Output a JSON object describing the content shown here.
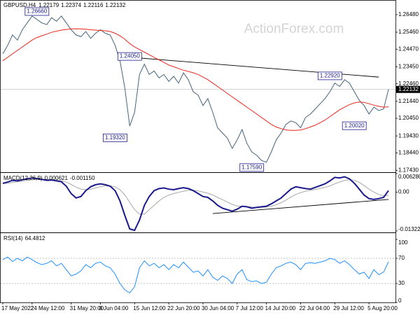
{
  "chart_data": [
    {
      "type": "price",
      "symbol": "GBPUSD,H4",
      "ohlc": [
        1.22179,
        1.22374,
        1.22116,
        1.22132
      ],
      "watermark": "ActionForex.com",
      "categories": [
        "17 May 2022",
        null,
        null,
        null,
        null,
        null,
        "24 May 12:00",
        null,
        null,
        null,
        null,
        null,
        null,
        null,
        "31 May 20:00",
        null,
        null,
        null,
        null,
        null,
        "8 Jun 04:00",
        null,
        null,
        null,
        null,
        null,
        null,
        "15 Jun 12:00",
        null,
        null,
        null,
        null,
        null,
        null,
        "22 Jun 20:00",
        null,
        null,
        null,
        null,
        null,
        null,
        "30 Jun 04:00",
        null,
        null,
        null,
        null,
        null,
        null,
        "7 Jul 12:00",
        null,
        null,
        null,
        null,
        null,
        "14 Jul 20:00",
        null,
        null,
        null,
        null,
        null,
        null,
        "22 Jul 04:00",
        null,
        null,
        null,
        null,
        null,
        null,
        "29 Jul 12:00",
        null,
        null,
        null,
        null,
        null,
        null,
        "5 Aug 20:00",
        null,
        null,
        null,
        null
      ],
      "series": [
        {
          "color": "#44657a",
          "values": [
            1.242,
            1.247,
            1.253,
            1.25,
            1.256,
            1.26,
            1.264,
            1.262,
            1.26,
            1.259,
            1.263,
            1.261,
            1.264,
            1.26,
            1.256,
            1.253,
            1.252,
            1.255,
            1.251,
            1.254,
            1.256,
            1.254,
            1.253,
            1.247,
            1.238,
            1.222,
            1.2,
            1.208,
            1.23,
            1.236,
            1.23,
            1.232,
            1.228,
            1.23,
            1.226,
            1.229,
            1.225,
            1.231,
            1.227,
            1.22,
            1.218,
            1.212,
            1.216,
            1.208,
            1.199,
            1.196,
            1.193,
            1.187,
            1.192,
            1.198,
            1.19,
            1.185,
            1.183,
            1.18,
            1.179,
            1.185,
            1.192,
            1.196,
            1.201,
            1.203,
            1.202,
            1.199,
            1.205,
            1.207,
            1.21,
            1.213,
            1.216,
            1.22,
            1.225,
            1.223,
            1.227,
            1.225,
            1.22,
            1.215,
            1.212,
            1.207,
            1.211,
            1.209,
            1.21,
            1.2213
          ]
        },
        {
          "color": "#e8261c",
          "values": [
            1.238,
            1.24,
            1.242,
            1.244,
            1.246,
            1.248,
            1.25,
            1.2515,
            1.2525,
            1.2535,
            1.2545,
            1.2552,
            1.2558,
            1.2562,
            1.2565,
            1.2566,
            1.2565,
            1.2563,
            1.256,
            1.2558,
            1.2556,
            1.2554,
            1.255,
            1.254,
            1.2525,
            1.2505,
            1.248,
            1.246,
            1.2445,
            1.243,
            1.2415,
            1.24,
            1.2385,
            1.237,
            1.2355,
            1.2345,
            1.2335,
            1.2325,
            1.2318,
            1.231,
            1.23,
            1.2285,
            1.227,
            1.225,
            1.223,
            1.221,
            1.219,
            1.217,
            1.215,
            1.213,
            1.211,
            1.209,
            1.207,
            1.205,
            1.203,
            1.201,
            1.1995,
            1.1985,
            1.1978,
            1.1975,
            1.1975,
            1.1978,
            1.1985,
            1.1995,
            1.2005,
            1.202,
            1.2035,
            1.2055,
            1.2075,
            1.2095,
            1.211,
            1.2125,
            1.2135,
            1.214,
            1.2138,
            1.213,
            1.2122,
            1.2115,
            1.211,
            1.2112
          ]
        }
      ],
      "ylim": [
        1.1732,
        1.2725
      ],
      "yticks": [
        {
          "value": 1.2648,
          "label": "1.26480"
        },
        {
          "value": 1.2546,
          "label": "1.25460"
        },
        {
          "value": 1.2447,
          "label": "1.24470"
        },
        {
          "value": 1.2345,
          "label": "1.23450"
        },
        {
          "value": 1.2246,
          "label": "1.22460"
        },
        {
          "value": 1.2144,
          "label": "1.21440"
        },
        {
          "value": 1.2045,
          "label": "1.20450"
        },
        {
          "value": 1.1943,
          "label": "1.19430"
        },
        {
          "value": 1.1844,
          "label": "1.18440"
        },
        {
          "value": 1.1743,
          "label": "1.17430"
        }
      ],
      "current_price": 1.22132,
      "trendline": {
        "from": [
          24,
          1.2405
        ],
        "to": [
          77,
          1.2285
        ]
      },
      "annotations": [
        {
          "index": 7,
          "value": 1.2666,
          "label": "1.26660"
        },
        {
          "index": 26,
          "value": 1.2405,
          "label": "1.24050"
        },
        {
          "index": 23,
          "value": 1.1932,
          "label": "1.19320"
        },
        {
          "index": 51,
          "value": 1.1759,
          "label": "1.17590"
        },
        {
          "index": 67,
          "value": 1.2292,
          "label": "1.22920"
        },
        {
          "index": 72,
          "value": 1.2002,
          "label": "1.20020"
        }
      ]
    },
    {
      "type": "macd",
      "title": "MACD(12,26,9)",
      "readout": {
        "values": [
          0.000621,
          -0.00115
        ],
        "value_labels": [
          "0.000621",
          "-0.001150"
        ]
      },
      "series": [
        {
          "color": "#1a1a8c",
          "values": [
            0.003,
            0.0034,
            0.004,
            0.0038,
            0.0042,
            0.0045,
            0.0048,
            0.0046,
            0.0043,
            0.004,
            0.0041,
            0.0038,
            0.0035,
            0.002,
            -0.0005,
            -0.002,
            -0.0015,
            0.0005,
            0.0018,
            0.0025,
            0.0028,
            0.0025,
            0.002,
            0.0005,
            -0.003,
            -0.008,
            -0.0125,
            -0.013,
            -0.0095,
            -0.0045,
            -0.0015,
            0.0005,
            0.0012,
            0.0014,
            0.001,
            0.0008,
            0.0012,
            0.0015,
            0.0012,
            0.0005,
            -0.0005,
            -0.0015,
            -0.0018,
            -0.003,
            -0.0045,
            -0.0055,
            -0.006,
            -0.0065,
            -0.0058,
            -0.0048,
            -0.005,
            -0.0055,
            -0.0052,
            -0.005,
            -0.0048,
            -0.004,
            -0.003,
            -0.002,
            -0.0005,
            0.001,
            0.0018,
            0.0015,
            0.0012,
            0.001,
            0.0016,
            0.0022,
            0.0028,
            0.0038,
            0.005,
            0.0048,
            0.0052,
            0.0045,
            0.003,
            0.001,
            -0.001,
            -0.0022,
            -0.0025,
            -0.0022,
            -0.0018,
            0.0005
          ]
        },
        {
          "color": "#a8a8a8",
          "values": [
            0.0028,
            0.003,
            0.0033,
            0.0035,
            0.0037,
            0.004,
            0.0042,
            0.0044,
            0.0044,
            0.0043,
            0.0042,
            0.004,
            0.0038,
            0.0034,
            0.0026,
            0.0017,
            0.001,
            0.0008,
            0.001,
            0.0014,
            0.0018,
            0.0021,
            0.0021,
            0.0018,
            0.0008,
            -0.001,
            -0.0035,
            -0.006,
            -0.0075,
            -0.0075,
            -0.006,
            -0.0045,
            -0.003,
            -0.0018,
            -0.001,
            -0.0005,
            -0.0001,
            0.0003,
            0.0006,
            0.0006,
            0.0004,
            0.0,
            -0.0004,
            -0.001,
            -0.0018,
            -0.0026,
            -0.0034,
            -0.0042,
            -0.0047,
            -0.0048,
            -0.0049,
            -0.0051,
            -0.0052,
            -0.0052,
            -0.0051,
            -0.0048,
            -0.0043,
            -0.0036,
            -0.0027,
            -0.0017,
            -0.0008,
            -0.0002,
            0.0003,
            0.0006,
            0.0009,
            0.0012,
            0.0016,
            0.0021,
            0.0028,
            0.0034,
            0.004,
            0.0042,
            0.004,
            0.0033,
            0.0022,
            0.001,
            0.0,
            -0.0008,
            -0.0013,
            -0.0012
          ]
        }
      ],
      "ylim": [
        -0.013223,
        0.00628
      ],
      "yticks": [
        {
          "value": 0.00628,
          "label": "0.006280"
        },
        {
          "value": 0,
          "label": "0.00"
        },
        -0.013223
      ],
      "trendline": {
        "from": [
          43,
          -0.0073
        ],
        "to": [
          79,
          -0.0025
        ]
      }
    },
    {
      "type": "rsi",
      "title": "RSI(14)",
      "readout": 64.4812,
      "series": [
        {
          "color": "#1e90ff",
          "values": [
            68,
            72,
            65,
            70,
            66,
            72,
            68,
            63,
            60,
            62,
            66,
            58,
            62,
            52,
            42,
            45,
            50,
            60,
            55,
            62,
            64,
            58,
            55,
            45,
            30,
            20,
            15,
            25,
            55,
            66,
            58,
            62,
            55,
            60,
            52,
            60,
            55,
            64,
            56,
            48,
            50,
            42,
            52,
            40,
            35,
            42,
            38,
            30,
            45,
            52,
            36,
            33,
            34,
            30,
            32,
            45,
            55,
            58,
            62,
            64,
            60,
            52,
            62,
            63,
            62,
            64,
            66,
            70,
            68,
            62,
            66,
            60,
            52,
            45,
            48,
            38,
            52,
            44,
            48,
            64.4812
          ]
        }
      ],
      "ylim": [
        0,
        100
      ],
      "yticks": [
        100,
        70,
        30,
        0
      ]
    }
  ]
}
